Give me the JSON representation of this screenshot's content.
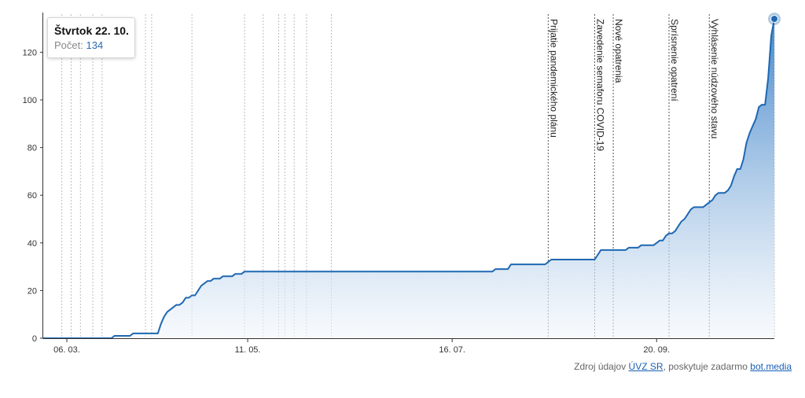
{
  "chart_data": {
    "type": "area",
    "ylim": [
      0,
      134
    ],
    "y_ticks": [
      0,
      20,
      40,
      60,
      80,
      100,
      120
    ],
    "x_tick_labels": [
      "06. 03.",
      "11. 05.",
      "16. 07.",
      "20. 09."
    ],
    "x_tick_days": [
      0,
      66,
      132,
      198
    ],
    "grid": false,
    "series": [
      {
        "values": [
          [
            0,
            0
          ],
          [
            22,
            0
          ],
          [
            23,
            1
          ],
          [
            28,
            1
          ],
          [
            29,
            2
          ],
          [
            37,
            2
          ],
          [
            38,
            6
          ],
          [
            39,
            9
          ],
          [
            40,
            11
          ],
          [
            41,
            12
          ],
          [
            42,
            13
          ],
          [
            43,
            14
          ],
          [
            44,
            14
          ],
          [
            45,
            15
          ],
          [
            46,
            17
          ],
          [
            47,
            17
          ],
          [
            48,
            18
          ],
          [
            49,
            18
          ],
          [
            50,
            20
          ],
          [
            51,
            22
          ],
          [
            52,
            23
          ],
          [
            53,
            24
          ],
          [
            54,
            24
          ],
          [
            55,
            25
          ],
          [
            56,
            25
          ],
          [
            57,
            25
          ],
          [
            58,
            26
          ],
          [
            59,
            26
          ],
          [
            60,
            26
          ],
          [
            61,
            26
          ],
          [
            62,
            27
          ],
          [
            63,
            27
          ],
          [
            64,
            27
          ],
          [
            65,
            28
          ],
          [
            66,
            28
          ],
          [
            67,
            28
          ],
          [
            68,
            28
          ],
          [
            69,
            28
          ],
          [
            70,
            28
          ],
          [
            145,
            28
          ],
          [
            146,
            29
          ],
          [
            150,
            29
          ],
          [
            151,
            31
          ],
          [
            157,
            31
          ],
          [
            162,
            31
          ],
          [
            163,
            32
          ],
          [
            164,
            33
          ],
          [
            170,
            33
          ],
          [
            178,
            33
          ],
          [
            179,
            35
          ],
          [
            180,
            37
          ],
          [
            184,
            37
          ],
          [
            188,
            37
          ],
          [
            189,
            38
          ],
          [
            192,
            38
          ],
          [
            193,
            39
          ],
          [
            195,
            39
          ],
          [
            197,
            39
          ],
          [
            198,
            40
          ],
          [
            199,
            41
          ],
          [
            200,
            41
          ],
          [
            201,
            43
          ],
          [
            202,
            44
          ],
          [
            203,
            44
          ],
          [
            204,
            45
          ],
          [
            205,
            47
          ],
          [
            206,
            49
          ],
          [
            207,
            50
          ],
          [
            208,
            52
          ],
          [
            209,
            54
          ],
          [
            210,
            55
          ],
          [
            211,
            55
          ],
          [
            212,
            55
          ],
          [
            213,
            55
          ],
          [
            214,
            56
          ],
          [
            215,
            57
          ],
          [
            216,
            58
          ],
          [
            217,
            60
          ],
          [
            218,
            61
          ],
          [
            219,
            61
          ],
          [
            220,
            61
          ],
          [
            221,
            62
          ],
          [
            222,
            64
          ],
          [
            223,
            68
          ],
          [
            224,
            71
          ],
          [
            225,
            71
          ],
          [
            226,
            75
          ],
          [
            227,
            82
          ],
          [
            228,
            86
          ],
          [
            229,
            89
          ],
          [
            230,
            92
          ],
          [
            231,
            97
          ],
          [
            232,
            98
          ],
          [
            233,
            98
          ],
          [
            234,
            109
          ],
          [
            235,
            127
          ],
          [
            236,
            134
          ]
        ],
        "color": "#1f68b3"
      }
    ],
    "annotations": [
      {
        "label": "Prijatie pandemického plánu",
        "day": 163
      },
      {
        "label": "Zavedenie semaforu COVID-19",
        "day": 178
      },
      {
        "label": "Nové opatrenia",
        "day": 184
      },
      {
        "label": "Sprísnenie opatrení",
        "day": 202
      },
      {
        "label": "Vyhlásenie núdzového stavu",
        "day": 215
      }
    ],
    "minor_marker_days": [
      6,
      9,
      12,
      16,
      19,
      33,
      35,
      48,
      65,
      71,
      76,
      78,
      81,
      85,
      93,
      236
    ]
  },
  "tooltip": {
    "date": "Štvrtok 22. 10.",
    "count_label": "Počet:",
    "count_value": "134"
  },
  "source": {
    "prefix": "Zdroj údajov",
    "link1": "ÚVZ SR",
    "middle": ", poskytuje zadarmo",
    "link2": "bot.media"
  },
  "colors": {
    "line": "#1f68b3",
    "fill_top": "#3d82c8",
    "fill_bottom": "#f3f7fc",
    "annotation_line": "#555555",
    "minor_line": "#bdbdbd"
  }
}
